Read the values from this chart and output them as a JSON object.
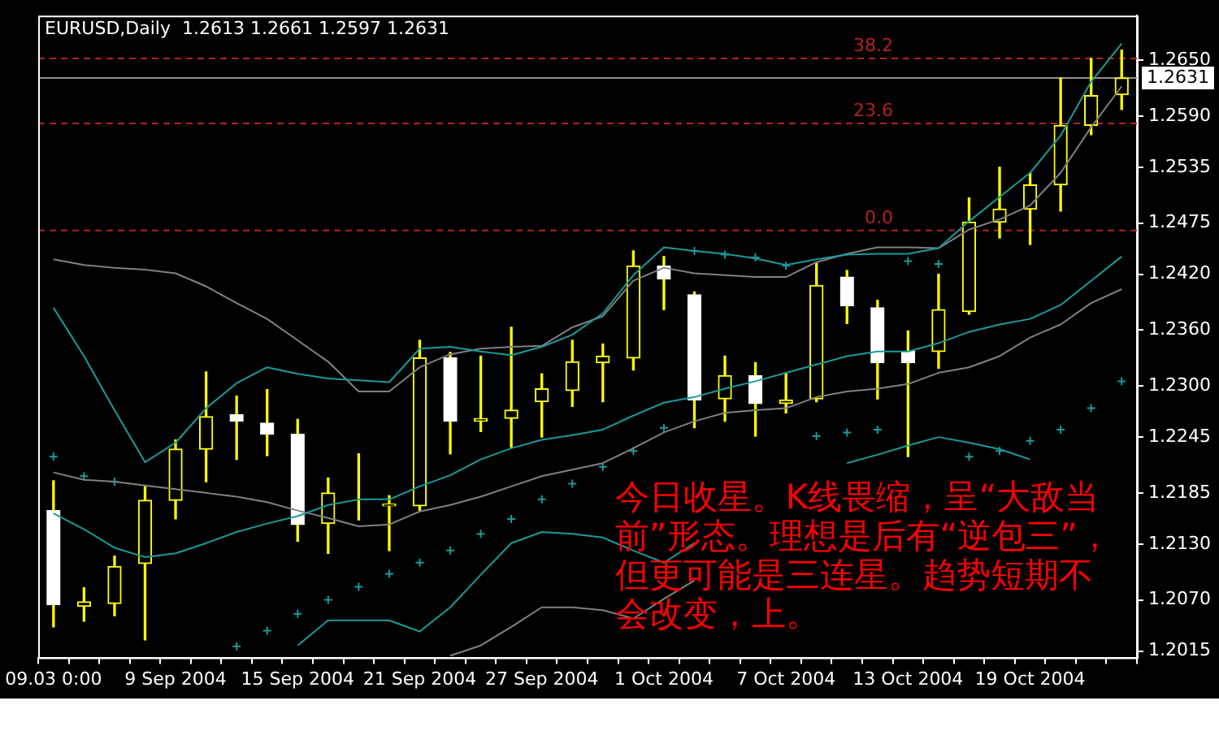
{
  "chart_data": {
    "type": "candlestick",
    "title": "EURUSD,Daily  1.2613 1.2661 1.2597 1.2631",
    "color": "#ffff00",
    "categories": [
      "09.03 0:00",
      null,
      null,
      null,
      "9 Sep 2004",
      null,
      null,
      null,
      "15 Sep 2004",
      null,
      null,
      null,
      "21 Sep 2004",
      null,
      null,
      null,
      "27 Sep 2004",
      null,
      null,
      null,
      "1 Oct 2004",
      null,
      null,
      null,
      "7 Oct 2004",
      null,
      null,
      null,
      "13 Oct 2004",
      null,
      null,
      null,
      "19 Oct 2004",
      null,
      null,
      null
    ],
    "ohlc": [
      [
        1.2166,
        1.2198,
        1.2041,
        1.2065
      ],
      [
        1.2063,
        1.2083,
        1.2047,
        1.2068
      ],
      [
        1.2066,
        1.2117,
        1.2053,
        1.2106
      ],
      [
        1.2109,
        1.2192,
        1.2027,
        1.2177
      ],
      [
        1.2177,
        1.2242,
        1.2157,
        1.2232
      ],
      [
        1.2232,
        1.2315,
        1.2197,
        1.2267
      ],
      [
        1.2269,
        1.2289,
        1.2221,
        1.2262
      ],
      [
        1.226,
        1.2296,
        1.2225,
        1.2248
      ],
      [
        1.2248,
        1.2264,
        1.2133,
        1.2151
      ],
      [
        1.2152,
        1.2201,
        1.212,
        1.2185
      ],
      [
        1.2187,
        1.2227,
        1.2156,
        1.2187
      ],
      [
        1.2171,
        1.2182,
        1.2123,
        1.2173
      ],
      [
        1.2171,
        1.2349,
        1.2166,
        1.233
      ],
      [
        1.233,
        1.2336,
        1.2227,
        1.2262
      ],
      [
        1.2262,
        1.2332,
        1.2251,
        1.2265
      ],
      [
        1.2265,
        1.2363,
        1.2234,
        1.2274
      ],
      [
        1.2283,
        1.2313,
        1.2245,
        1.2297
      ],
      [
        1.2295,
        1.2349,
        1.2278,
        1.2326
      ],
      [
        1.2325,
        1.2345,
        1.2283,
        1.2332
      ],
      [
        1.233,
        1.2445,
        1.2317,
        1.2429
      ],
      [
        1.2429,
        1.2439,
        1.2382,
        1.2415
      ],
      [
        1.2398,
        1.2401,
        1.2255,
        1.2285
      ],
      [
        1.2286,
        1.2332,
        1.2262,
        1.2311
      ],
      [
        1.2311,
        1.2325,
        1.2246,
        1.2281
      ],
      [
        1.2281,
        1.2314,
        1.2271,
        1.2285
      ],
      [
        1.2286,
        1.2432,
        1.2283,
        1.2408
      ],
      [
        1.2417,
        1.2424,
        1.2367,
        1.2386
      ],
      [
        1.2384,
        1.2392,
        1.2286,
        1.2325
      ],
      [
        1.2337,
        1.2359,
        1.2224,
        1.2325
      ],
      [
        1.2337,
        1.242,
        1.2319,
        1.2382
      ],
      [
        1.238,
        1.2502,
        1.2377,
        1.2476
      ],
      [
        1.2476,
        1.2535,
        1.2459,
        1.249
      ],
      [
        1.249,
        1.2529,
        1.2452,
        1.2516
      ],
      [
        1.2516,
        1.2631,
        1.2488,
        1.258
      ],
      [
        1.258,
        1.2652,
        1.257,
        1.2612
      ],
      [
        1.2613,
        1.2661,
        1.2597,
        1.2631
      ]
    ],
    "colors": [
      "#ffffff",
      "#ffff00",
      "#ffff00",
      "#ffff00",
      "#ffff00",
      "#ffff00",
      "#ffffff",
      "#ffffff",
      "#ffffff",
      "#ffff00",
      "#ffff00",
      "#ffff00",
      "#ffff00",
      "#ffffff",
      "#ffff00",
      "#ffff00",
      "#ffff00",
      "#ffff00",
      "#ffff00",
      "#ffff00",
      "#ffffff",
      "#ffffff",
      "#ffff00",
      "#ffffff",
      "#ffff00",
      "#ffff00",
      "#ffffff",
      "#ffffff",
      "#ffffff",
      "#ffff00",
      "#ffff00",
      "#ffff00",
      "#ffff00",
      "#ffff00",
      "#ffff00",
      "#ffff00"
    ],
    "series": [
      {
        "type": "line",
        "color": "#1a9a9a",
        "marker": "none",
        "values": [
          1.2384,
          1.2332,
          1.2274,
          1.2218,
          1.2239,
          1.2276,
          1.2303,
          1.232,
          1.2313,
          1.2308,
          1.2306,
          1.2304,
          1.234,
          1.2342,
          1.2337,
          1.2333,
          1.2342,
          1.2355,
          1.2378,
          1.2419,
          1.2449,
          1.2445,
          1.2442,
          1.2437,
          1.243,
          1.2436,
          1.2441,
          1.2442,
          1.2442,
          1.2448,
          1.2477,
          1.2503,
          1.2529,
          1.2569,
          1.2627,
          1.2668
        ]
      },
      {
        "type": "line",
        "color": "#808080",
        "marker": "none",
        "values": [
          1.2436,
          1.243,
          1.2427,
          1.2425,
          1.2421,
          1.2407,
          1.2389,
          1.2372,
          1.2349,
          1.2326,
          1.2294,
          1.2294,
          1.232,
          1.2334,
          1.234,
          1.2342,
          1.2343,
          1.2363,
          1.2375,
          1.2413,
          1.2427,
          1.2421,
          1.2419,
          1.2417,
          1.2417,
          1.2433,
          1.2442,
          1.2449,
          1.2449,
          1.2448,
          1.2468,
          1.2479,
          1.2494,
          1.2529,
          1.2578,
          1.2622
        ]
      },
      {
        "type": "line",
        "color": "#1a9a9a",
        "marker": "none",
        "values": [
          1.2163,
          1.2146,
          1.2126,
          1.2116,
          1.212,
          1.2131,
          1.2143,
          1.2152,
          1.216,
          1.2172,
          1.2178,
          1.2178,
          1.2192,
          1.2204,
          1.2221,
          1.2233,
          1.2242,
          1.2247,
          1.2253,
          1.2268,
          1.2282,
          1.2288,
          1.2297,
          1.2305,
          1.2314,
          1.2323,
          1.2332,
          1.2337,
          1.2337,
          1.2346,
          1.2358,
          1.2366,
          1.2372,
          1.2387,
          1.2413,
          1.2439
        ]
      },
      {
        "type": "line",
        "color": "#808080",
        "marker": "none",
        "values": [
          1.2207,
          1.2199,
          1.2197,
          1.2193,
          1.2189,
          1.2185,
          1.2181,
          1.2175,
          1.2166,
          1.2158,
          1.2149,
          1.2151,
          1.2165,
          1.2172,
          1.2181,
          1.2192,
          1.2203,
          1.221,
          1.2217,
          1.2233,
          1.225,
          1.2262,
          1.2271,
          1.2274,
          1.2276,
          1.2288,
          1.2294,
          1.2297,
          1.2302,
          1.2314,
          1.232,
          1.2332,
          1.2352,
          1.2366,
          1.2389,
          1.2404
        ]
      },
      {
        "type": "line",
        "color": "#1a9a9a",
        "marker": "none",
        "values": [
          null,
          null,
          null,
          null,
          null,
          null,
          null,
          null,
          1.2021,
          1.2048,
          1.2048,
          1.2048,
          1.2036,
          1.2062,
          1.2097,
          1.2131,
          1.2143,
          1.2141,
          1.2137,
          1.2123,
          1.211,
          1.2131,
          null,
          null,
          null,
          null,
          1.2217,
          1.2226,
          1.2236,
          1.2245,
          1.2239,
          1.2232,
          1.2221,
          null,
          null,
          null
        ]
      },
      {
        "type": "line",
        "color": "#808080",
        "marker": "none",
        "values": [
          null,
          null,
          null,
          null,
          null,
          null,
          null,
          null,
          null,
          null,
          null,
          null,
          null,
          1.201,
          1.2021,
          1.2041,
          1.2062,
          1.2062,
          1.2059,
          1.205,
          1.2071,
          1.2091,
          null,
          null,
          null,
          null,
          null,
          null,
          null,
          null,
          null,
          null,
          null,
          null,
          null,
          null
        ]
      },
      {
        "type": "scatter",
        "color": "#1a9a9a",
        "marker": "cross",
        "values": [
          1.2224,
          1.2203,
          1.2197,
          null,
          null,
          null,
          1.202,
          1.2037,
          1.2055,
          1.207,
          1.2084,
          1.2098,
          1.211,
          1.2123,
          1.2141,
          1.2157,
          1.2178,
          1.2195,
          1.2213,
          1.223,
          1.2255,
          1.2445,
          1.2441,
          1.2438,
          1.2429,
          1.2246,
          1.225,
          1.2253,
          1.2434,
          1.2431,
          1.2224,
          1.223,
          1.2241,
          1.2253,
          1.2276,
          1.2305
        ]
      }
    ],
    "ylim": [
      1.2008,
      1.2698
    ],
    "yticks": [
      {
        "value": 1.265,
        "label": "1.2650"
      },
      {
        "value": 1.259,
        "label": "1.2590"
      },
      1.2535,
      1.2475,
      {
        "value": 1.242,
        "label": "1.2420"
      },
      {
        "value": 1.236,
        "label": "1.2360"
      },
      {
        "value": 1.23,
        "label": "1.2300"
      },
      1.2245,
      1.2185,
      {
        "value": 1.213,
        "label": "1.2130"
      },
      {
        "value": 1.207,
        "label": "1.2070"
      },
      1.2015
    ],
    "ref_lines": [
      {
        "axis": "y",
        "value": 1.2652,
        "color": "#b22222",
        "line_style": "dashed"
      },
      {
        "axis": "y",
        "value": 1.2582,
        "color": "#b22222",
        "line_style": "dashed"
      },
      {
        "axis": "y",
        "value": 1.2467,
        "color": "#b22222",
        "line_style": "dashed"
      },
      {
        "axis": "y",
        "value": 1.2631,
        "label": "1.2631",
        "color": "#909090",
        "line_style": "solid"
      }
    ],
    "annotations": [
      {
        "text": "38.2",
        "y": 1.2652
      },
      {
        "text": "23.6",
        "y": 1.2582
      },
      {
        "text": "0.0",
        "y": 1.2467
      },
      "今日收星。K线畏缩，呈“大敌当前”形态。理想是后有“逆包三”，但更可能是三连星。趋势短期不会改变，上。"
    ]
  }
}
